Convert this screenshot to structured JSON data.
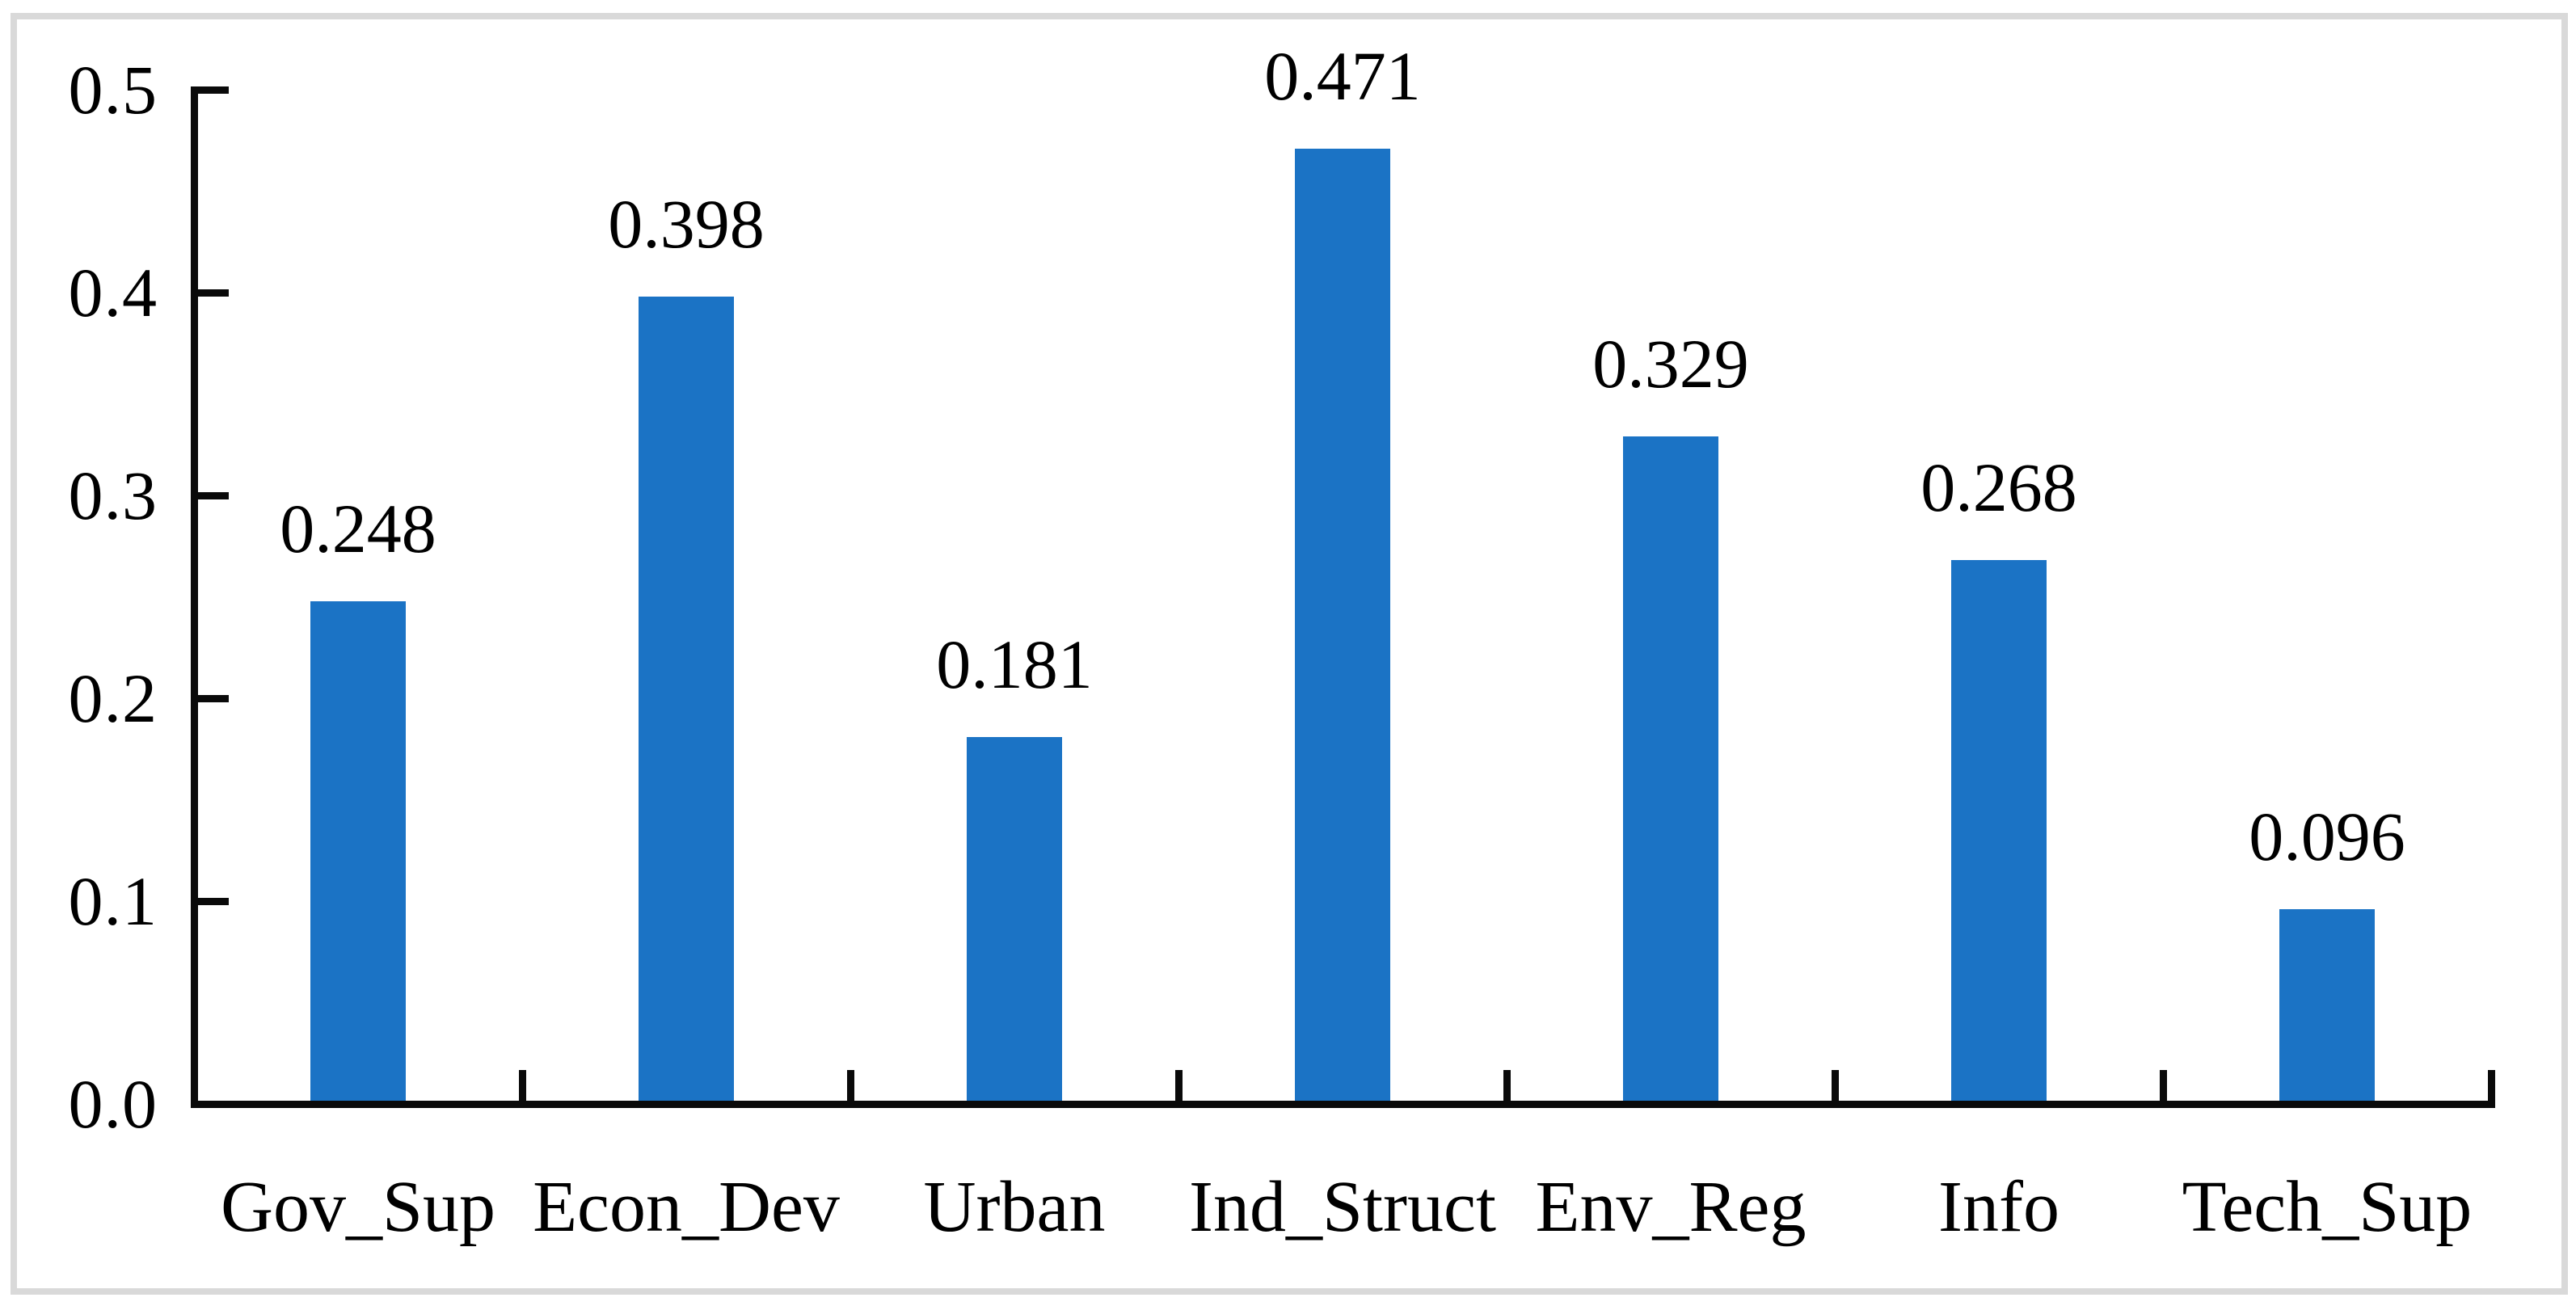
{
  "chart_data": {
    "type": "bar",
    "categories": [
      "Gov_Sup",
      "Econ_Dev",
      "Urban",
      "Ind_Struct",
      "Env_Reg",
      "Info",
      "Tech_Sup"
    ],
    "values": [
      0.248,
      0.398,
      0.181,
      0.471,
      0.329,
      0.268,
      0.096
    ],
    "value_labels": [
      "0.248",
      "0.398",
      "0.181",
      "0.471",
      "0.329",
      "0.268",
      "0.096"
    ],
    "ylim": [
      0.0,
      0.5
    ],
    "yticks": [
      0.0,
      0.1,
      0.2,
      0.3,
      0.4,
      0.5
    ],
    "ytick_labels": [
      "0.0",
      "0.1",
      "0.2",
      "0.3",
      "0.4",
      "0.5"
    ],
    "grid": false,
    "legend": "none",
    "bar_color": "#1b73c5",
    "axis_color": "#0a0a0a",
    "text_color": "#000000",
    "frame_color": "#d9d9d9",
    "background": "#ffffff"
  }
}
